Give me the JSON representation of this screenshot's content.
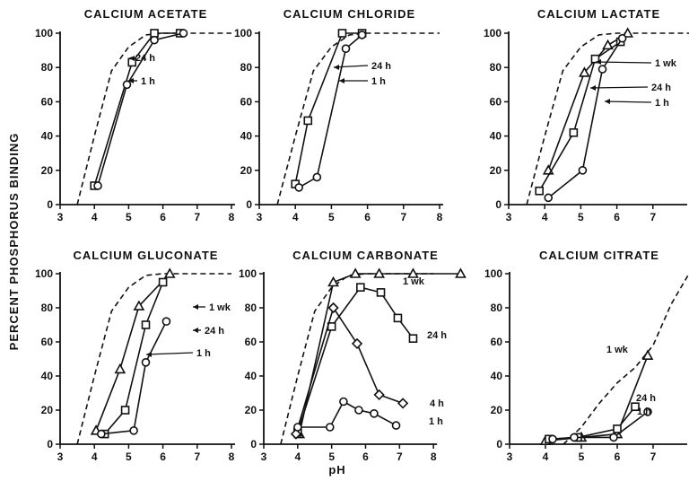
{
  "figure": {
    "ylabel": "PERCENT PHOSPHORUS BINDING",
    "xlabel": "pH"
  },
  "chart_data": [
    {
      "type": "line",
      "title": "CALCIUM ACETATE",
      "xlim": [
        3,
        8
      ],
      "ylim": [
        0,
        100
      ],
      "xticks": [
        "3",
        "4",
        "5",
        "6",
        "7",
        "8"
      ],
      "yticks": [
        "0",
        "20",
        "40",
        "60",
        "80",
        "100"
      ],
      "reference_curve": [
        [
          3.5,
          0
        ],
        [
          4.0,
          40
        ],
        [
          4.5,
          78
        ],
        [
          5.0,
          92
        ],
        [
          5.5,
          99
        ],
        [
          6.0,
          100
        ],
        [
          8.0,
          100
        ]
      ],
      "series": [
        {
          "name": "24 h",
          "marker": "square",
          "x": [
            4.0,
            5.1,
            5.75,
            6.5
          ],
          "y": [
            11,
            83,
            100,
            100
          ]
        },
        {
          "name": "1 h",
          "marker": "circle",
          "x": [
            4.1,
            4.95,
            5.75,
            6.6
          ],
          "y": [
            11,
            70,
            96,
            100
          ]
        }
      ]
    },
    {
      "type": "line",
      "title": "CALCIUM CHLORIDE",
      "xlim": [
        3,
        8
      ],
      "ylim": [
        0,
        100
      ],
      "xticks": [
        "3",
        "4",
        "5",
        "6",
        "7",
        "8"
      ],
      "yticks": [
        "0",
        "20",
        "40",
        "60",
        "80",
        "100"
      ],
      "reference_curve": [
        [
          3.5,
          0
        ],
        [
          4.0,
          40
        ],
        [
          4.5,
          78
        ],
        [
          5.0,
          92
        ],
        [
          5.5,
          99
        ],
        [
          6.0,
          100
        ],
        [
          8.0,
          100
        ]
      ],
      "series": [
        {
          "name": "24 h",
          "marker": "square",
          "x": [
            4.0,
            4.35,
            5.3,
            5.85
          ],
          "y": [
            12,
            49,
            100,
            100
          ]
        },
        {
          "name": "1 h",
          "marker": "circle",
          "x": [
            4.1,
            4.6,
            5.4,
            5.85
          ],
          "y": [
            10,
            16,
            91,
            99
          ]
        }
      ]
    },
    {
      "type": "line",
      "title": "CALCIUM LACTATE",
      "xlim": [
        3,
        8
      ],
      "ylim": [
        0,
        100
      ],
      "xticks": [
        "3",
        "4",
        "5",
        "6",
        "7",
        "8"
      ],
      "yticks": [
        "0",
        "20",
        "40",
        "60",
        "80",
        "100"
      ],
      "reference_curve": [
        [
          3.5,
          0
        ],
        [
          4.0,
          40
        ],
        [
          4.5,
          78
        ],
        [
          5.0,
          92
        ],
        [
          5.5,
          99
        ],
        [
          6.0,
          100
        ],
        [
          8.0,
          100
        ]
      ],
      "series": [
        {
          "name": "1 wk",
          "marker": "triangle",
          "x": [
            4.1,
            5.1,
            5.75,
            6.3
          ],
          "y": [
            20,
            77,
            93,
            100
          ]
        },
        {
          "name": "24 h",
          "marker": "square",
          "x": [
            3.85,
            4.8,
            5.4,
            6.1
          ],
          "y": [
            8,
            42,
            85,
            95
          ]
        },
        {
          "name": "1 h",
          "marker": "circle",
          "x": [
            4.1,
            5.05,
            5.6,
            6.15
          ],
          "y": [
            4,
            20,
            79,
            97
          ]
        }
      ]
    },
    {
      "type": "line",
      "title": "CALCIUM GLUCONATE",
      "xlim": [
        3,
        8
      ],
      "ylim": [
        0,
        100
      ],
      "xticks": [
        "3",
        "4",
        "5",
        "6",
        "7",
        "8"
      ],
      "yticks": [
        "0",
        "20",
        "40",
        "60",
        "80",
        "100"
      ],
      "reference_curve": [
        [
          3.5,
          0
        ],
        [
          4.0,
          40
        ],
        [
          4.5,
          78
        ],
        [
          5.0,
          92
        ],
        [
          5.5,
          99
        ],
        [
          6.0,
          100
        ],
        [
          8.0,
          100
        ]
      ],
      "series": [
        {
          "name": "1 wk",
          "marker": "triangle",
          "x": [
            4.05,
            4.75,
            5.3,
            6.2
          ],
          "y": [
            8,
            44,
            81,
            100
          ]
        },
        {
          "name": "24 h",
          "marker": "square",
          "x": [
            4.3,
            4.9,
            5.5,
            6.0
          ],
          "y": [
            6,
            20,
            70,
            95
          ]
        },
        {
          "name": "1 h",
          "marker": "circle",
          "x": [
            4.2,
            5.15,
            5.5,
            6.1
          ],
          "y": [
            6,
            8,
            48,
            72
          ]
        }
      ]
    },
    {
      "type": "line",
      "title": "CALCIUM CARBONATE",
      "xlim": [
        3,
        9
      ],
      "ylim": [
        0,
        100
      ],
      "xticks": [
        "3",
        "4",
        "5",
        "6",
        "7",
        "8"
      ],
      "yticks": [
        "0",
        "20",
        "40",
        "60",
        "80",
        "100"
      ],
      "reference_curve": [
        [
          3.5,
          0
        ],
        [
          4.0,
          40
        ],
        [
          4.5,
          78
        ],
        [
          5.0,
          92
        ],
        [
          5.5,
          99
        ],
        [
          6.0,
          100
        ],
        [
          8.0,
          100
        ]
      ],
      "series": [
        {
          "name": "1 wk",
          "marker": "triangle",
          "x": [
            4.05,
            5.05,
            5.7,
            6.4,
            7.4,
            8.8
          ],
          "y": [
            6,
            95,
            100,
            100,
            100,
            100
          ]
        },
        {
          "name": "24 h",
          "marker": "square",
          "x": [
            4.0,
            5.0,
            5.85,
            6.45,
            6.95,
            7.4
          ],
          "y": [
            7,
            69,
            92,
            89,
            74,
            62
          ]
        },
        {
          "name": "4 h",
          "marker": "diamond",
          "x": [
            3.95,
            5.05,
            5.75,
            6.4,
            7.1
          ],
          "y": [
            6,
            80,
            59,
            29,
            24
          ]
        },
        {
          "name": "1 h",
          "marker": "circle",
          "x": [
            4.0,
            4.95,
            5.35,
            5.8,
            6.25,
            6.9
          ],
          "y": [
            10,
            10,
            25,
            20,
            18,
            11
          ]
        }
      ]
    },
    {
      "type": "line",
      "title": "CALCIUM CITRATE",
      "xlim": [
        3,
        8
      ],
      "ylim": [
        0,
        100
      ],
      "xticks": [
        "3",
        "4",
        "5",
        "6",
        "7",
        "8"
      ],
      "yticks": [
        "0",
        "20",
        "40",
        "60",
        "80",
        "100"
      ],
      "reference_curve": [
        [
          4.5,
          0
        ],
        [
          5.0,
          10
        ],
        [
          5.5,
          24
        ],
        [
          6.0,
          36
        ],
        [
          6.5,
          45
        ],
        [
          7.0,
          58
        ],
        [
          7.5,
          82
        ],
        [
          8.0,
          100
        ]
      ],
      "series": [
        {
          "name": "1 wk",
          "marker": "triangle",
          "x": [
            4.0,
            5.0,
            6.0,
            6.85
          ],
          "y": [
            2,
            4,
            6,
            52
          ]
        },
        {
          "name": "24 h",
          "marker": "square",
          "x": [
            4.1,
            4.9,
            6.0,
            6.5
          ],
          "y": [
            3,
            4,
            9,
            22
          ]
        },
        {
          "name": "1 h",
          "marker": "circle",
          "x": [
            4.2,
            4.8,
            5.9,
            6.85
          ],
          "y": [
            3,
            4,
            4,
            19
          ]
        }
      ]
    }
  ]
}
